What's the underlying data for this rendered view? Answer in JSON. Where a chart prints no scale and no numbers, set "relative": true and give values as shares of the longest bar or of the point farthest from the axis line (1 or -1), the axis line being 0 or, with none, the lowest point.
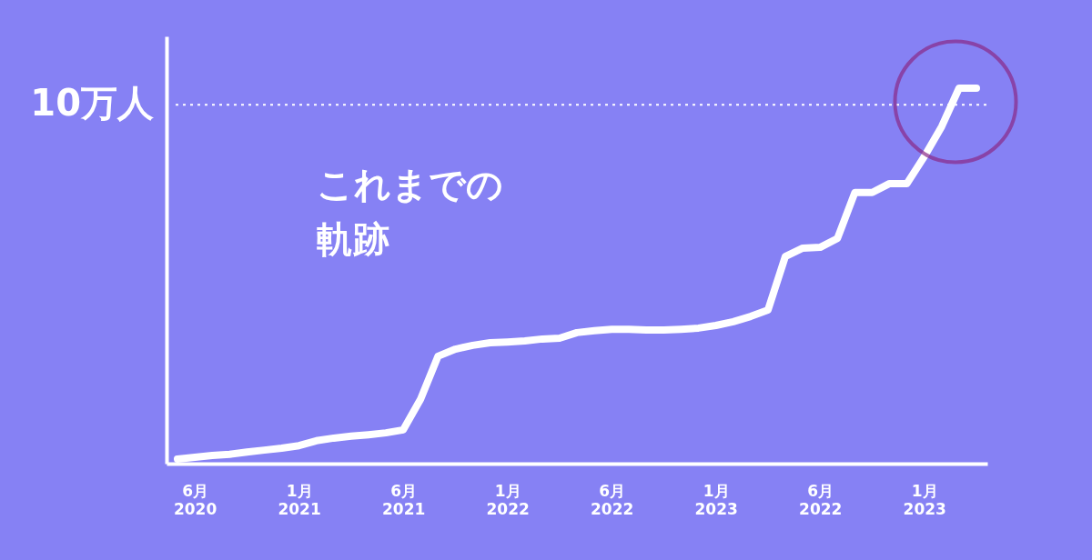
{
  "chart_data": {
    "type": "line",
    "relative": true,
    "categories": [
      null,
      "6月\n2020",
      null,
      null,
      null,
      null,
      null,
      "1月\n2021",
      null,
      null,
      null,
      null,
      null,
      "6月\n2021",
      null,
      null,
      null,
      null,
      null,
      "1月\n2022",
      null,
      null,
      null,
      null,
      null,
      "6月\n2022",
      null,
      null,
      null,
      null,
      null,
      "1月\n2023",
      null,
      null,
      null,
      null,
      null,
      "6月\n2022",
      null,
      null,
      null,
      null,
      null,
      "1月\n2023",
      null,
      null,
      null
    ],
    "series": [
      {
        "color": "#ffffff",
        "values": [
          0.012,
          0.017,
          0.022,
          0.025,
          0.031,
          0.036,
          0.041,
          0.048,
          0.061,
          0.068,
          0.073,
          0.077,
          0.082,
          0.09,
          0.172,
          0.286,
          0.305,
          0.315,
          0.322,
          0.324,
          0.327,
          0.332,
          0.334,
          0.349,
          0.354,
          0.358,
          0.358,
          0.356,
          0.356,
          0.358,
          0.361,
          0.368,
          0.378,
          0.392,
          0.409,
          0.552,
          0.574,
          0.576,
          0.6,
          0.722,
          0.722,
          0.746,
          0.746,
          0.818,
          0.898,
          1,
          1
        ]
      }
    ],
    "ref_lines": [
      {
        "axis": "y",
        "value": 0.956,
        "label": "10万人",
        "color": "#ffffff",
        "line_style": "dotted"
      }
    ],
    "annotations": [
      "これまでの",
      "軌跡"
    ],
    "line_style": "solid",
    "grid": false
  }
}
